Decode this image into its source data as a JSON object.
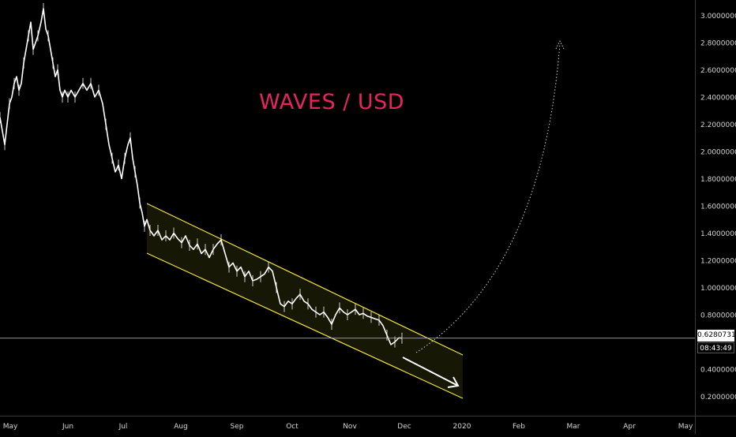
{
  "chart_data": {
    "type": "line",
    "title": "WAVES / USD",
    "xlabel": "",
    "ylabel": "",
    "x_tick_labels": [
      "May",
      "Jun",
      "Jul",
      "Aug",
      "Sep",
      "Oct",
      "Nov",
      "Dec",
      "2020",
      "Feb",
      "Mar",
      "Apr",
      "May"
    ],
    "y_tick_labels": [
      "3.0000000",
      "2.8000000",
      "2.6000000",
      "2.4000000",
      "2.2000000",
      "2.0000000",
      "1.8000000",
      "1.6000000",
      "1.4000000",
      "1.2000000",
      "1.0000000",
      "0.8000000",
      "0.4000000",
      "0.2000000"
    ],
    "ylim": [
      0.14,
      3.1
    ],
    "current_price": 0.6280731,
    "current_price_label": "0.6280731",
    "countdown": "08:43:49",
    "series": [
      {
        "values": [
          [
            0,
            2.25
          ],
          [
            3,
            2.15
          ],
          [
            6,
            2.05
          ],
          [
            9,
            2.2
          ],
          [
            12,
            2.35
          ],
          [
            15,
            2.4
          ],
          [
            18,
            2.5
          ],
          [
            21,
            2.55
          ],
          [
            24,
            2.45
          ],
          [
            27,
            2.5
          ],
          [
            30,
            2.65
          ],
          [
            33,
            2.75
          ],
          [
            36,
            2.85
          ],
          [
            39,
            2.95
          ],
          [
            42,
            2.75
          ],
          [
            45,
            2.8
          ],
          [
            48,
            2.85
          ],
          [
            52,
            2.95
          ],
          [
            55,
            3.05
          ],
          [
            58,
            2.9
          ],
          [
            61,
            2.85
          ],
          [
            64,
            2.75
          ],
          [
            67,
            2.65
          ],
          [
            70,
            2.55
          ],
          [
            73,
            2.6
          ],
          [
            76,
            2.45
          ],
          [
            79,
            2.4
          ],
          [
            82,
            2.45
          ],
          [
            86,
            2.4
          ],
          [
            90,
            2.45
          ],
          [
            95,
            2.4
          ],
          [
            100,
            2.45
          ],
          [
            105,
            2.5
          ],
          [
            110,
            2.45
          ],
          [
            115,
            2.5
          ],
          [
            120,
            2.4
          ],
          [
            125,
            2.45
          ],
          [
            130,
            2.35
          ],
          [
            134,
            2.2
          ],
          [
            138,
            2.05
          ],
          [
            142,
            1.95
          ],
          [
            146,
            1.85
          ],
          [
            150,
            1.9
          ],
          [
            154,
            1.8
          ],
          [
            158,
            1.95
          ],
          [
            162,
            2.05
          ],
          [
            165,
            2.1
          ],
          [
            168,
            1.95
          ],
          [
            171,
            1.85
          ],
          [
            174,
            1.75
          ],
          [
            177,
            1.62
          ],
          [
            180,
            1.55
          ],
          [
            183,
            1.45
          ],
          [
            186,
            1.5
          ],
          [
            190,
            1.42
          ],
          [
            195,
            1.38
          ],
          [
            200,
            1.42
          ],
          [
            205,
            1.35
          ],
          [
            210,
            1.38
          ],
          [
            215,
            1.35
          ],
          [
            220,
            1.4
          ],
          [
            225,
            1.36
          ],
          [
            230,
            1.33
          ],
          [
            235,
            1.38
          ],
          [
            240,
            1.31
          ],
          [
            245,
            1.28
          ],
          [
            250,
            1.32
          ],
          [
            255,
            1.25
          ],
          [
            260,
            1.28
          ],
          [
            265,
            1.22
          ],
          [
            270,
            1.28
          ],
          [
            275,
            1.32
          ],
          [
            280,
            1.35
          ],
          [
            285,
            1.25
          ],
          [
            290,
            1.15
          ],
          [
            295,
            1.18
          ],
          [
            300,
            1.12
          ],
          [
            305,
            1.15
          ],
          [
            310,
            1.08
          ],
          [
            315,
            1.12
          ],
          [
            320,
            1.05
          ],
          [
            325,
            1.06
          ],
          [
            330,
            1.08
          ],
          [
            335,
            1.1
          ],
          [
            340,
            1.15
          ],
          [
            345,
            1.12
          ],
          [
            350,
            1.0
          ],
          [
            355,
            0.88
          ],
          [
            360,
            0.86
          ],
          [
            365,
            0.9
          ],
          [
            370,
            0.88
          ],
          [
            375,
            0.92
          ],
          [
            380,
            0.95
          ],
          [
            385,
            0.9
          ],
          [
            390,
            0.88
          ],
          [
            395,
            0.84
          ],
          [
            400,
            0.82
          ],
          [
            405,
            0.8
          ],
          [
            410,
            0.82
          ],
          [
            415,
            0.78
          ],
          [
            420,
            0.73
          ],
          [
            425,
            0.8
          ],
          [
            430,
            0.85
          ],
          [
            435,
            0.82
          ],
          [
            440,
            0.8
          ],
          [
            445,
            0.82
          ],
          [
            450,
            0.84
          ],
          [
            455,
            0.8
          ],
          [
            460,
            0.81
          ],
          [
            465,
            0.79
          ],
          [
            470,
            0.78
          ],
          [
            475,
            0.77
          ],
          [
            480,
            0.76
          ],
          [
            485,
            0.72
          ],
          [
            490,
            0.65
          ],
          [
            495,
            0.58
          ],
          [
            500,
            0.6
          ],
          [
            505,
            0.63
          ],
          [
            509,
            0.628
          ]
        ]
      }
    ]
  }
}
